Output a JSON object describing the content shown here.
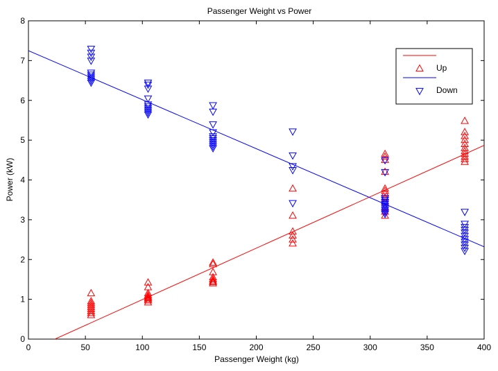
{
  "chart_data": {
    "type": "scatter",
    "title": "Passenger Weight vs Power",
    "xlabel": "Passenger Weight (kg)",
    "ylabel": "Power (kW)",
    "xlim": [
      0,
      400
    ],
    "ylim": [
      0,
      8
    ],
    "xticks": [
      0,
      50,
      100,
      150,
      200,
      250,
      300,
      350,
      400
    ],
    "yticks": [
      0,
      1,
      2,
      3,
      4,
      5,
      6,
      7,
      8
    ],
    "grid": false,
    "legend_position": "top-right",
    "series": [
      {
        "name": "Up",
        "marker": "triangle-up",
        "color": "#ff0000",
        "points": [
          [
            55,
            0.6
          ],
          [
            55,
            0.65
          ],
          [
            55,
            0.7
          ],
          [
            55,
            0.75
          ],
          [
            55,
            0.8
          ],
          [
            55,
            0.85
          ],
          [
            55,
            0.9
          ],
          [
            55,
            0.95
          ],
          [
            55,
            1.15
          ],
          [
            105,
            0.92
          ],
          [
            105,
            0.97
          ],
          [
            105,
            1.0
          ],
          [
            105,
            1.03
          ],
          [
            105,
            1.06
          ],
          [
            105,
            1.1
          ],
          [
            105,
            1.15
          ],
          [
            105,
            1.3
          ],
          [
            105,
            1.42
          ],
          [
            162,
            1.4
          ],
          [
            162,
            1.43
          ],
          [
            162,
            1.46
          ],
          [
            162,
            1.5
          ],
          [
            162,
            1.55
          ],
          [
            162,
            1.68
          ],
          [
            162,
            1.88
          ],
          [
            162,
            1.92
          ],
          [
            232,
            2.4
          ],
          [
            232,
            2.5
          ],
          [
            232,
            2.6
          ],
          [
            232,
            2.7
          ],
          [
            232,
            3.1
          ],
          [
            232,
            3.78
          ],
          [
            313,
            3.1
          ],
          [
            313,
            3.2
          ],
          [
            313,
            3.3
          ],
          [
            313,
            3.45
          ],
          [
            313,
            3.55
          ],
          [
            313,
            3.65
          ],
          [
            313,
            3.72
          ],
          [
            313,
            3.78
          ],
          [
            313,
            4.2
          ],
          [
            313,
            4.5
          ],
          [
            313,
            4.58
          ],
          [
            313,
            4.65
          ],
          [
            383,
            4.45
          ],
          [
            383,
            4.52
          ],
          [
            383,
            4.58
          ],
          [
            383,
            4.65
          ],
          [
            383,
            4.72
          ],
          [
            383,
            4.8
          ],
          [
            383,
            4.9
          ],
          [
            383,
            5.0
          ],
          [
            383,
            5.1
          ],
          [
            383,
            5.2
          ],
          [
            383,
            5.48
          ]
        ],
        "fit_line": [
          [
            0,
            -0.3
          ],
          [
            400,
            4.87
          ]
        ]
      },
      {
        "name": "Down",
        "marker": "triangle-down",
        "color": "#0000ff",
        "points": [
          [
            55,
            6.45
          ],
          [
            55,
            6.5
          ],
          [
            55,
            6.55
          ],
          [
            55,
            6.6
          ],
          [
            55,
            6.65
          ],
          [
            55,
            6.7
          ],
          [
            55,
            7.0
          ],
          [
            55,
            7.1
          ],
          [
            55,
            7.2
          ],
          [
            55,
            7.3
          ],
          [
            105,
            5.65
          ],
          [
            105,
            5.7
          ],
          [
            105,
            5.75
          ],
          [
            105,
            5.8
          ],
          [
            105,
            5.85
          ],
          [
            105,
            5.9
          ],
          [
            105,
            6.05
          ],
          [
            105,
            6.3
          ],
          [
            105,
            6.4
          ],
          [
            105,
            6.45
          ],
          [
            162,
            4.8
          ],
          [
            162,
            4.85
          ],
          [
            162,
            4.9
          ],
          [
            162,
            4.95
          ],
          [
            162,
            5.0
          ],
          [
            162,
            5.05
          ],
          [
            162,
            5.1
          ],
          [
            162,
            5.2
          ],
          [
            162,
            5.4
          ],
          [
            162,
            5.72
          ],
          [
            162,
            5.88
          ],
          [
            232,
            4.25
          ],
          [
            232,
            4.35
          ],
          [
            232,
            4.62
          ],
          [
            232,
            3.42
          ],
          [
            232,
            5.22
          ],
          [
            313,
            3.15
          ],
          [
            313,
            3.2
          ],
          [
            313,
            3.25
          ],
          [
            313,
            3.3
          ],
          [
            313,
            3.35
          ],
          [
            313,
            3.4
          ],
          [
            313,
            3.45
          ],
          [
            313,
            3.5
          ],
          [
            313,
            3.55
          ],
          [
            313,
            4.2
          ],
          [
            313,
            4.5
          ],
          [
            383,
            2.22
          ],
          [
            383,
            2.3
          ],
          [
            383,
            2.38
          ],
          [
            383,
            2.45
          ],
          [
            383,
            2.52
          ],
          [
            383,
            2.6
          ],
          [
            383,
            2.68
          ],
          [
            383,
            2.75
          ],
          [
            383,
            2.82
          ],
          [
            383,
            2.9
          ],
          [
            383,
            3.2
          ]
        ],
        "fit_line": [
          [
            0,
            7.25
          ],
          [
            400,
            2.32
          ]
        ]
      }
    ]
  }
}
